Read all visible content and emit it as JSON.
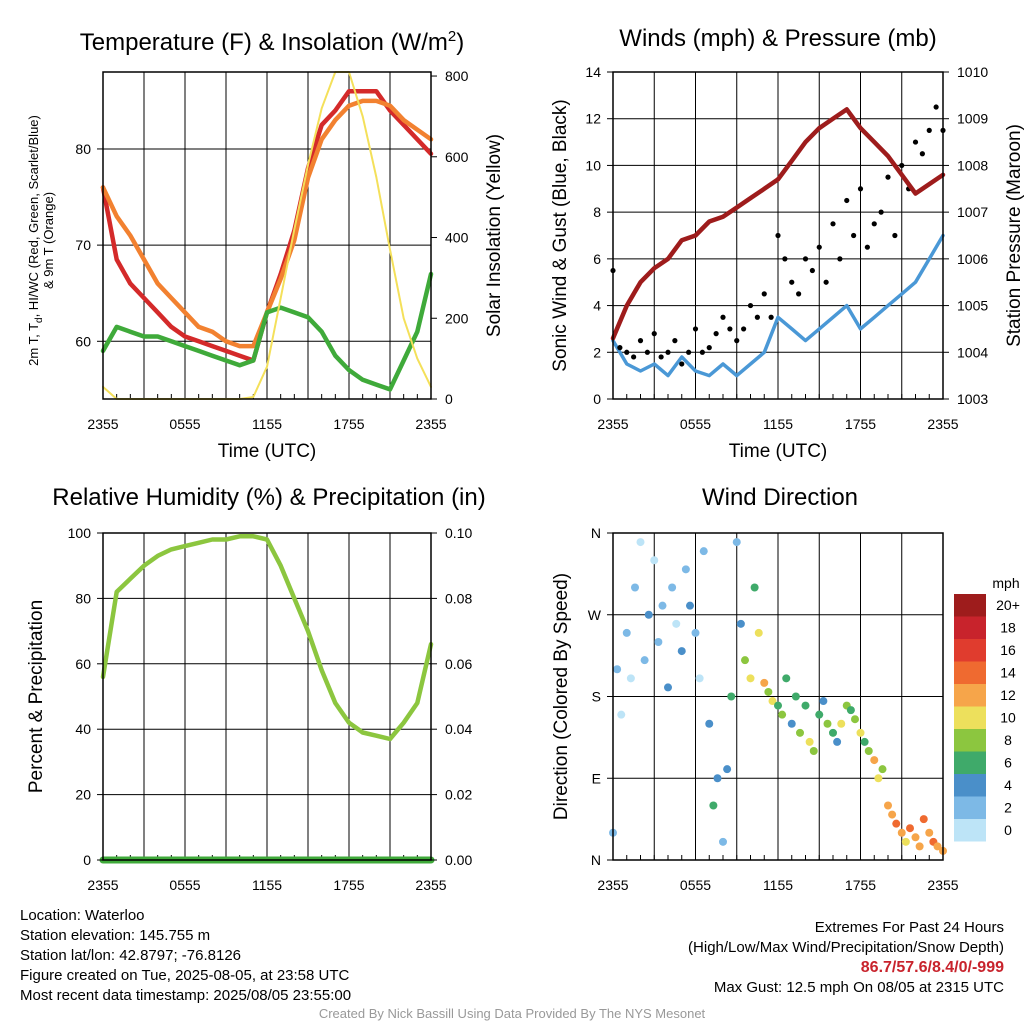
{
  "colors": {
    "red": "#d42a2a",
    "green": "#3faa3a",
    "orange": "#f28130",
    "yellow": "#f4e05a",
    "maroon": "#9e1c1c",
    "blue": "#4a98d6",
    "black": "#000000",
    "rh": "#8cc63f",
    "precip": "#3faa3a"
  },
  "chart_data": [
    {
      "id": "temperature",
      "type": "line",
      "title": "Temperature (F) & Insolation (W/m",
      "title_sup": "2",
      "title_end": ")",
      "xlabel": "Time (UTC)",
      "ylabel_lines": [
        "2m T, T",
        "d",
        ", HI/WC (Red, Green, Scarlet/Blue)",
        "& 9m T (Orange)"
      ],
      "y2label": "Solar Insolation (Yellow)",
      "x_ticks": [
        "2355",
        "0555",
        "1155",
        "1755",
        "2355"
      ],
      "x": [
        0,
        1,
        2,
        3,
        4,
        5,
        6,
        7,
        8,
        9,
        10,
        11,
        12,
        13,
        14,
        15,
        16,
        17,
        18,
        19,
        20,
        21,
        22,
        23,
        24
      ],
      "xlim": [
        0,
        24
      ],
      "ylim": [
        54,
        88
      ],
      "y_ticks": [
        60,
        70,
        80
      ],
      "y2lim": [
        0,
        810
      ],
      "y2_ticks": [
        0,
        200,
        400,
        600,
        800
      ],
      "series": [
        {
          "key": "t2m_red",
          "axis": "left",
          "values": [
            76,
            68.5,
            66,
            64.5,
            63,
            61.5,
            60.5,
            60,
            59.5,
            59,
            58.5,
            58,
            63,
            67,
            71.5,
            78,
            82.5,
            84,
            86,
            86,
            86,
            84,
            82.5,
            81,
            79.5
          ]
        },
        {
          "key": "t9m_orange",
          "axis": "left",
          "values": [
            76,
            73,
            71,
            68.5,
            66,
            64.5,
            63,
            61.5,
            61,
            60,
            59.5,
            59.5,
            63,
            66.5,
            70.5,
            77,
            81,
            83,
            84.5,
            85,
            85,
            84.5,
            83,
            82,
            81
          ]
        },
        {
          "key": "td_green",
          "axis": "left",
          "values": [
            59,
            61.5,
            61,
            60.5,
            60.5,
            60,
            59.5,
            59,
            58.5,
            58,
            57.5,
            58,
            63,
            63.5,
            63,
            62.5,
            61,
            58.5,
            57,
            56,
            55.5,
            55,
            58,
            61,
            67
          ]
        },
        {
          "key": "solar_yellow",
          "axis": "right",
          "values": [
            30,
            0,
            0,
            0,
            0,
            0,
            0,
            0,
            0,
            0,
            0,
            5,
            80,
            250,
            420,
            580,
            720,
            810,
            810,
            700,
            550,
            370,
            200,
            100,
            30
          ]
        }
      ]
    },
    {
      "id": "winds",
      "type": "scatter",
      "title": "Winds (mph) & Pressure (mb)",
      "xlabel": "Time (UTC)",
      "ylabel": "Sonic Wind & Gust (Blue, Black)",
      "y2label": "Station Pressure (Maroon)",
      "x_ticks": [
        "2355",
        "0555",
        "1155",
        "1755",
        "2355"
      ],
      "xlim": [
        0,
        24
      ],
      "ylim": [
        0,
        14
      ],
      "y_ticks": [
        0,
        2,
        4,
        6,
        8,
        10,
        12,
        14
      ],
      "y2lim": [
        1003,
        1010
      ],
      "y2_ticks": [
        1003,
        1004,
        1005,
        1006,
        1007,
        1008,
        1009,
        1010
      ],
      "series": [
        {
          "key": "wind_blue",
          "axis": "left",
          "x": [
            0,
            1,
            2,
            3,
            4,
            5,
            6,
            7,
            8,
            9,
            10,
            11,
            12,
            13,
            14,
            15,
            16,
            17,
            18,
            19,
            20,
            21,
            22,
            23,
            24
          ],
          "values": [
            2.5,
            1.5,
            1.2,
            1.5,
            1.0,
            1.8,
            1.2,
            1.0,
            1.5,
            1.0,
            1.5,
            2.0,
            3.5,
            3.0,
            2.5,
            3.0,
            3.5,
            4.0,
            3.0,
            3.5,
            4.0,
            4.5,
            5.0,
            6.0,
            7.0
          ]
        },
        {
          "key": "gust_black",
          "axis": "left",
          "x": [
            0,
            0.5,
            1,
            1.5,
            2,
            2.5,
            3,
            3.5,
            4,
            4.5,
            5,
            5.5,
            6,
            6.5,
            7,
            7.5,
            8,
            8.5,
            9,
            9.5,
            10,
            10.5,
            11,
            11.5,
            12,
            12.5,
            13,
            13.5,
            14,
            14.5,
            15,
            15.5,
            16,
            16.5,
            17,
            17.5,
            18,
            18.5,
            19,
            19.5,
            20,
            20.5,
            21,
            21.5,
            22,
            22.5,
            23,
            23.5,
            24
          ],
          "values": [
            5.5,
            2.2,
            2.0,
            1.8,
            2.5,
            2.0,
            2.8,
            1.8,
            2.0,
            2.5,
            1.5,
            2.0,
            3.0,
            2.0,
            2.2,
            2.8,
            3.5,
            3.0,
            2.5,
            3.0,
            4.0,
            3.5,
            4.5,
            3.5,
            7.0,
            6.0,
            5.0,
            4.5,
            6.0,
            5.5,
            6.5,
            5.0,
            7.5,
            6.0,
            8.5,
            7.0,
            9.0,
            6.5,
            7.5,
            8.0,
            9.5,
            7.0,
            10.0,
            9.0,
            11.0,
            10.5,
            11.5,
            12.5,
            11.5
          ]
        },
        {
          "key": "pressure_maroon",
          "axis": "right",
          "x": [
            0,
            1,
            2,
            3,
            4,
            5,
            6,
            7,
            8,
            9,
            10,
            11,
            12,
            13,
            14,
            15,
            16,
            17,
            18,
            19,
            20,
            21,
            22,
            23,
            24
          ],
          "values": [
            1004.3,
            1005.0,
            1005.5,
            1005.8,
            1006.0,
            1006.4,
            1006.5,
            1006.8,
            1006.9,
            1007.1,
            1007.3,
            1007.5,
            1007.7,
            1008.1,
            1008.5,
            1008.8,
            1009.0,
            1009.2,
            1008.8,
            1008.5,
            1008.2,
            1007.8,
            1007.4,
            1007.6,
            1007.8
          ]
        }
      ]
    },
    {
      "id": "humidity",
      "type": "line",
      "title": "Relative Humidity (%) & Precipitation (in)",
      "ylabel": "Percent & Precipitation",
      "x_ticks": [
        "2355",
        "0555",
        "1155",
        "1755",
        "2355"
      ],
      "x": [
        0,
        1,
        2,
        3,
        4,
        5,
        6,
        7,
        8,
        9,
        10,
        11,
        12,
        13,
        14,
        15,
        16,
        17,
        18,
        19,
        20,
        21,
        22,
        23,
        24
      ],
      "xlim": [
        0,
        24
      ],
      "ylim": [
        0,
        100
      ],
      "y_ticks": [
        0,
        20,
        40,
        60,
        80,
        100
      ],
      "y2lim": [
        0,
        0.1
      ],
      "y2_ticks": [
        "0.00",
        "0.02",
        "0.04",
        "0.06",
        "0.08",
        "0.10"
      ],
      "series": [
        {
          "key": "rh",
          "axis": "left",
          "values": [
            56,
            82,
            86,
            90,
            93,
            95,
            96,
            97,
            98,
            98,
            99,
            99,
            98,
            90,
            80,
            70,
            58,
            48,
            42,
            39,
            38,
            37,
            42,
            48,
            66
          ]
        },
        {
          "key": "precip",
          "axis": "right",
          "values": [
            0,
            0,
            0,
            0,
            0,
            0,
            0,
            0,
            0,
            0,
            0,
            0,
            0,
            0,
            0,
            0,
            0,
            0,
            0,
            0,
            0,
            0,
            0,
            0,
            0
          ]
        }
      ]
    },
    {
      "id": "direction",
      "type": "scatter",
      "title": "Wind Direction",
      "ylabel": "Direction (Colored By Speed)",
      "x_ticks": [
        "2355",
        "0555",
        "1155",
        "1755",
        "2355"
      ],
      "y_ticks": [
        "N",
        "E",
        "S",
        "W",
        "N"
      ],
      "xlim": [
        0,
        24
      ],
      "ylim": [
        0,
        360
      ],
      "legend_title": "mph",
      "legend_labels": [
        "20+",
        "18",
        "16",
        "14",
        "12",
        "10",
        "8",
        "6",
        "4",
        "2",
        "0"
      ],
      "legend_colors": [
        "#9e1c1c",
        "#c8232c",
        "#e03c2e",
        "#ef6a30",
        "#f6a54a",
        "#ede05c",
        "#8cc63f",
        "#3faa6a",
        "#4a8fc9",
        "#7db9e6",
        "#bde4f7"
      ],
      "points": {
        "x": [
          0,
          0.3,
          0.6,
          1,
          1.3,
          1.6,
          2,
          2.3,
          2.6,
          3,
          3.3,
          3.6,
          4,
          4.3,
          4.6,
          5,
          5.3,
          5.6,
          6,
          6.3,
          6.6,
          7,
          7.3,
          7.6,
          8,
          8.3,
          8.6,
          9,
          9.3,
          9.6,
          10,
          10.3,
          10.6,
          11,
          11.3,
          11.6,
          12,
          12.3,
          12.6,
          13,
          13.3,
          13.6,
          14,
          14.3,
          14.6,
          15,
          15.3,
          15.6,
          16,
          16.3,
          16.6,
          17,
          17.3,
          17.6,
          18,
          18.3,
          18.6,
          19,
          19.3,
          19.6,
          20,
          20.3,
          20.6,
          21,
          21.3,
          21.6,
          22,
          22.3,
          22.6,
          23,
          23.3,
          23.6,
          24
        ],
        "y": [
          30,
          210,
          160,
          250,
          200,
          300,
          350,
          220,
          270,
          330,
          240,
          280,
          190,
          300,
          260,
          230,
          320,
          280,
          250,
          200,
          340,
          150,
          60,
          90,
          20,
          100,
          180,
          350,
          260,
          220,
          200,
          300,
          250,
          195,
          185,
          175,
          170,
          160,
          200,
          150,
          180,
          140,
          170,
          130,
          120,
          160,
          175,
          150,
          140,
          130,
          150,
          170,
          165,
          155,
          140,
          130,
          120,
          110,
          90,
          100,
          60,
          50,
          40,
          30,
          20,
          35,
          25,
          15,
          45,
          30,
          20,
          15,
          10
        ],
        "speed": [
          1,
          1,
          0,
          1,
          0,
          1,
          0,
          1,
          2,
          0,
          1,
          1,
          2,
          1,
          0,
          2,
          1,
          2,
          1,
          0,
          1,
          2,
          3,
          2,
          1,
          2,
          3,
          1,
          2,
          4,
          5,
          3,
          5,
          6,
          4,
          5,
          3,
          4,
          3,
          2,
          3,
          4,
          3,
          5,
          4,
          3,
          2,
          4,
          3,
          2,
          5,
          4,
          3,
          4,
          5,
          3,
          4,
          6,
          5,
          4,
          6,
          6,
          7,
          6,
          5,
          7,
          6,
          6,
          7,
          6,
          7,
          6,
          6
        ]
      }
    }
  ],
  "info_left": [
    "Location: Waterloo",
    "Station elevation: 145.755 m",
    "Station lat/lon: 42.8797; -76.8126",
    "Figure created on Tue, 2025-08-05, at 23:58 UTC",
    "Most recent data timestamp: 2025/08/05 23:55:00"
  ],
  "extremes": {
    "line1": "Extremes For Past 24 Hours",
    "line2": "(High/Low/Max Wind/Precipitation/Snow Depth)",
    "values": "86.7/57.6/8.4/0/-999",
    "gust": "Max Gust: 12.5 mph On 08/05 at 2315 UTC"
  },
  "credit": "Created By Nick Bassill Using Data Provided By The NYS Mesonet"
}
